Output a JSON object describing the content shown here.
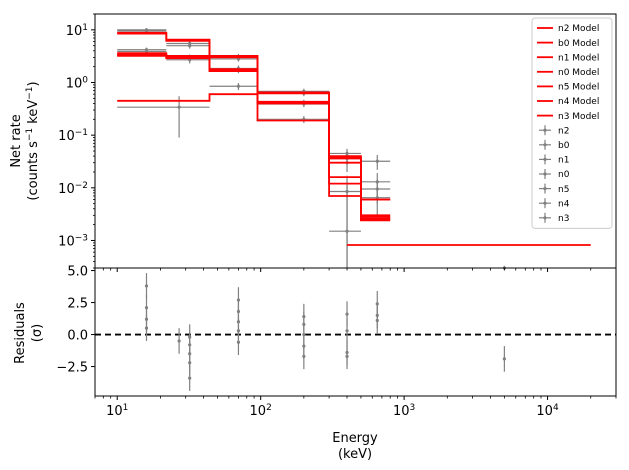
{
  "chart_data": {
    "type": "line",
    "xlabel": "Energy",
    "xunit": "(keV)",
    "xscale": "log",
    "xlim": [
      7,
      30000
    ],
    "xticks": [
      {
        "value": 10,
        "base": "10",
        "exp": "1"
      },
      {
        "value": 100,
        "base": "10",
        "exp": "2"
      },
      {
        "value": 1000,
        "base": "10",
        "exp": "3"
      },
      {
        "value": 10000,
        "base": "10",
        "exp": "4"
      }
    ],
    "top_panel": {
      "ylabel": "Net rate",
      "yunit_prefix": "(counts s",
      "yunit_exp1": "−1",
      "yunit_mid": " keV",
      "yunit_exp2": "−1",
      "yunit_suffix": ")",
      "yscale": "log",
      "ylim": [
        0.0003,
        20
      ],
      "yticks": [
        {
          "value": 10,
          "base": "10",
          "exp": "1"
        },
        {
          "value": 1,
          "base": "10",
          "exp": "0"
        },
        {
          "value": 0.1,
          "base": "10",
          "exp": "−1"
        },
        {
          "value": 0.01,
          "base": "10",
          "exp": "−2"
        },
        {
          "value": 0.001,
          "base": "10",
          "exp": "−3"
        }
      ],
      "model_color": "#ff0000",
      "data_color": "#808080",
      "legend_position": "top-right",
      "legend_models": [
        "n2 Model",
        "b0 Model",
        "n1 Model",
        "n0 Model",
        "n5 Model",
        "n4 Model",
        "n3 Model"
      ],
      "legend_data": [
        "n2",
        "b0",
        "n1",
        "n0",
        "n5",
        "n4",
        "n3"
      ],
      "edges": [
        10,
        22,
        44,
        95,
        300,
        500,
        800
      ],
      "models": [
        [
          8.5,
          6.2,
          3.0,
          0.62,
          0.038,
          0.0028
        ],
        [
          8.8,
          6.5,
          3.2,
          0.65,
          0.04,
          0.003
        ],
        [
          3.4,
          3.0,
          1.75,
          0.42,
          0.036,
          0.0026
        ],
        [
          3.2,
          2.9,
          1.7,
          0.4,
          0.03,
          0.0024
        ],
        [
          3.6,
          3.2,
          1.8,
          0.43,
          0.012,
          0.006
        ],
        [
          3.3,
          3.0,
          1.65,
          0.41,
          0.016,
          0.006
        ],
        [
          0.45,
          0.45,
          0.6,
          0.19,
          0.007,
          0.0026
        ]
      ],
      "b0_extra": {
        "x_start": 400,
        "x_end": 20000,
        "y": 0.00082
      },
      "data_points": [
        {
          "x": 16,
          "xlo": 10,
          "xhi": 22,
          "y": 10.0,
          "ylo": 9.4,
          "yhi": 10.8
        },
        {
          "x": 16,
          "xlo": 10,
          "xhi": 22,
          "y": 9.5,
          "ylo": 8.9,
          "yhi": 10.1
        },
        {
          "x": 16,
          "xlo": 10,
          "xhi": 22,
          "y": 4.2,
          "ylo": 3.8,
          "yhi": 4.6
        },
        {
          "x": 16,
          "xlo": 10,
          "xhi": 22,
          "y": 3.9,
          "ylo": 3.5,
          "yhi": 4.3
        },
        {
          "x": 16,
          "xlo": 10,
          "xhi": 22,
          "y": 3.5,
          "ylo": 3.1,
          "yhi": 3.9
        },
        {
          "x": 27,
          "xlo": 10,
          "xhi": 44,
          "y": 0.34,
          "ylo": 0.09,
          "yhi": 0.55
        },
        {
          "x": 32,
          "xlo": 22,
          "xhi": 44,
          "y": 5.5,
          "ylo": 4.8,
          "yhi": 6.2
        },
        {
          "x": 32,
          "xlo": 22,
          "xhi": 44,
          "y": 5.0,
          "ylo": 4.4,
          "yhi": 5.6
        },
        {
          "x": 32,
          "xlo": 22,
          "xhi": 44,
          "y": 3.0,
          "ylo": 2.6,
          "yhi": 3.4
        },
        {
          "x": 32,
          "xlo": 22,
          "xhi": 44,
          "y": 2.7,
          "ylo": 2.3,
          "yhi": 3.1
        },
        {
          "x": 70,
          "xlo": 44,
          "xhi": 95,
          "y": 3.1,
          "ylo": 2.8,
          "yhi": 3.5
        },
        {
          "x": 70,
          "xlo": 44,
          "xhi": 95,
          "y": 2.8,
          "ylo": 2.5,
          "yhi": 3.1
        },
        {
          "x": 70,
          "xlo": 44,
          "xhi": 95,
          "y": 1.85,
          "ylo": 1.6,
          "yhi": 2.1
        },
        {
          "x": 70,
          "xlo": 44,
          "xhi": 95,
          "y": 1.75,
          "ylo": 1.5,
          "yhi": 2.0
        },
        {
          "x": 70,
          "xlo": 44,
          "xhi": 95,
          "y": 0.85,
          "ylo": 0.72,
          "yhi": 0.98
        },
        {
          "x": 200,
          "xlo": 95,
          "xhi": 300,
          "y": 0.68,
          "ylo": 0.6,
          "yhi": 0.76
        },
        {
          "x": 200,
          "xlo": 95,
          "xhi": 300,
          "y": 0.62,
          "ylo": 0.55,
          "yhi": 0.7
        },
        {
          "x": 200,
          "xlo": 95,
          "xhi": 300,
          "y": 0.42,
          "ylo": 0.37,
          "yhi": 0.47
        },
        {
          "x": 200,
          "xlo": 95,
          "xhi": 300,
          "y": 0.39,
          "ylo": 0.34,
          "yhi": 0.44
        },
        {
          "x": 200,
          "xlo": 95,
          "xhi": 300,
          "y": 0.2,
          "ylo": 0.17,
          "yhi": 0.23
        },
        {
          "x": 400,
          "xlo": 300,
          "xhi": 500,
          "y": 0.045,
          "ylo": 0.036,
          "yhi": 0.055
        },
        {
          "x": 400,
          "xlo": 300,
          "xhi": 500,
          "y": 0.04,
          "ylo": 0.031,
          "yhi": 0.049
        },
        {
          "x": 400,
          "xlo": 300,
          "xhi": 500,
          "y": 0.036,
          "ylo": 0.028,
          "yhi": 0.044
        },
        {
          "x": 400,
          "xlo": 300,
          "xhi": 500,
          "y": 0.03,
          "ylo": 0.02,
          "yhi": 0.04
        },
        {
          "x": 400,
          "xlo": 300,
          "xhi": 500,
          "y": 0.0085,
          "ylo": 0.0003,
          "yhi": 0.017
        },
        {
          "x": 400,
          "xlo": 300,
          "xhi": 500,
          "y": 0.0015,
          "ylo": 0.0003,
          "yhi": 0.011
        },
        {
          "x": 650,
          "xlo": 500,
          "xhi": 800,
          "y": 0.032,
          "ylo": 0.022,
          "yhi": 0.042
        },
        {
          "x": 650,
          "xlo": 500,
          "xhi": 800,
          "y": 0.013,
          "ylo": 0.007,
          "yhi": 0.019
        },
        {
          "x": 650,
          "xlo": 500,
          "xhi": 800,
          "y": 0.0095,
          "ylo": 0.005,
          "yhi": 0.014
        },
        {
          "x": 650,
          "xlo": 500,
          "xhi": 800,
          "y": 0.0065,
          "ylo": 0.003,
          "yhi": 0.01
        },
        {
          "x": 5000,
          "xlo": 5000,
          "xhi": 5000,
          "y": 0.00028,
          "ylo": 0.0002,
          "yhi": 0.00033
        }
      ]
    },
    "bottom_panel": {
      "ylabel": "Residuals",
      "yunit": "(σ)",
      "ylim": [
        -4.8,
        5.2
      ],
      "yticks": [
        {
          "value": 5.0,
          "label": "5.0"
        },
        {
          "value": 2.5,
          "label": "2.5"
        },
        {
          "value": 0.0,
          "label": "0.0"
        },
        {
          "value": -2.5,
          "label": "−2.5"
        }
      ],
      "zero_line": "dashed",
      "residuals": [
        {
          "x": 16,
          "y": 3.8,
          "err": 1.0
        },
        {
          "x": 16,
          "y": 2.1,
          "err": 1.0
        },
        {
          "x": 16,
          "y": 1.2,
          "err": 1.0
        },
        {
          "x": 16,
          "y": 0.5,
          "err": 1.0
        },
        {
          "x": 27,
          "y": -0.5,
          "err": 1.0
        },
        {
          "x": 32,
          "y": -0.2,
          "err": 1.0
        },
        {
          "x": 32,
          "y": -0.8,
          "err": 1.0
        },
        {
          "x": 32,
          "y": -1.5,
          "err": 1.0
        },
        {
          "x": 32,
          "y": -2.2,
          "err": 1.0
        },
        {
          "x": 32,
          "y": -3.4,
          "err": 1.0
        },
        {
          "x": 70,
          "y": 2.7,
          "err": 1.0
        },
        {
          "x": 70,
          "y": 1.8,
          "err": 1.0
        },
        {
          "x": 70,
          "y": 1.0,
          "err": 1.0
        },
        {
          "x": 70,
          "y": 0.3,
          "err": 1.0
        },
        {
          "x": 70,
          "y": -0.6,
          "err": 1.0
        },
        {
          "x": 200,
          "y": 1.4,
          "err": 1.0
        },
        {
          "x": 200,
          "y": 0.8,
          "err": 1.0
        },
        {
          "x": 200,
          "y": 0.0,
          "err": 1.0
        },
        {
          "x": 200,
          "y": -0.9,
          "err": 1.0
        },
        {
          "x": 200,
          "y": -1.7,
          "err": 1.0
        },
        {
          "x": 400,
          "y": 1.6,
          "err": 1.0
        },
        {
          "x": 400,
          "y": 0.3,
          "err": 1.0
        },
        {
          "x": 400,
          "y": -1.4,
          "err": 1.0
        },
        {
          "x": 400,
          "y": -1.7,
          "err": 1.0
        },
        {
          "x": 650,
          "y": 2.4,
          "err": 1.0
        },
        {
          "x": 650,
          "y": 1.5,
          "err": 1.0
        },
        {
          "x": 650,
          "y": 1.1,
          "err": 1.0
        },
        {
          "x": 5000,
          "y": -1.9,
          "err": 1.0
        }
      ]
    }
  }
}
